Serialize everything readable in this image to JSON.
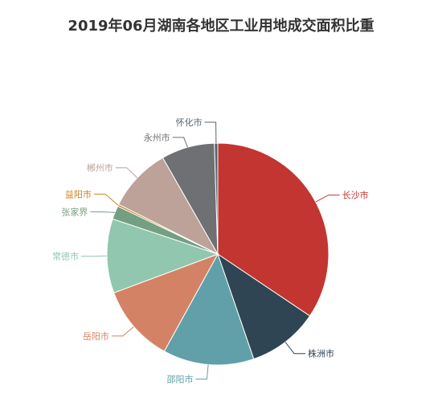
{
  "chart_data": {
    "type": "pie",
    "title": "2019年06月湖南各地区工业用地成交面积比重",
    "categories": [
      "长沙市",
      "株洲市",
      "邵阳市",
      "岳阳市",
      "常德市",
      "张家界",
      "益阳市",
      "郴州市",
      "永州市",
      "怀化市"
    ],
    "values": [
      35.0,
      10.5,
      13.5,
      11.5,
      11.0,
      2.0,
      0.3,
      9.5,
      7.9,
      0.5
    ],
    "unit": "%",
    "colors": [
      "#c23531",
      "#2f4554",
      "#61a0a8",
      "#d48265",
      "#91c7ae",
      "#749f83",
      "#ca8622",
      "#bda29a",
      "#6e7074",
      "#546570"
    ],
    "legend": "none"
  }
}
